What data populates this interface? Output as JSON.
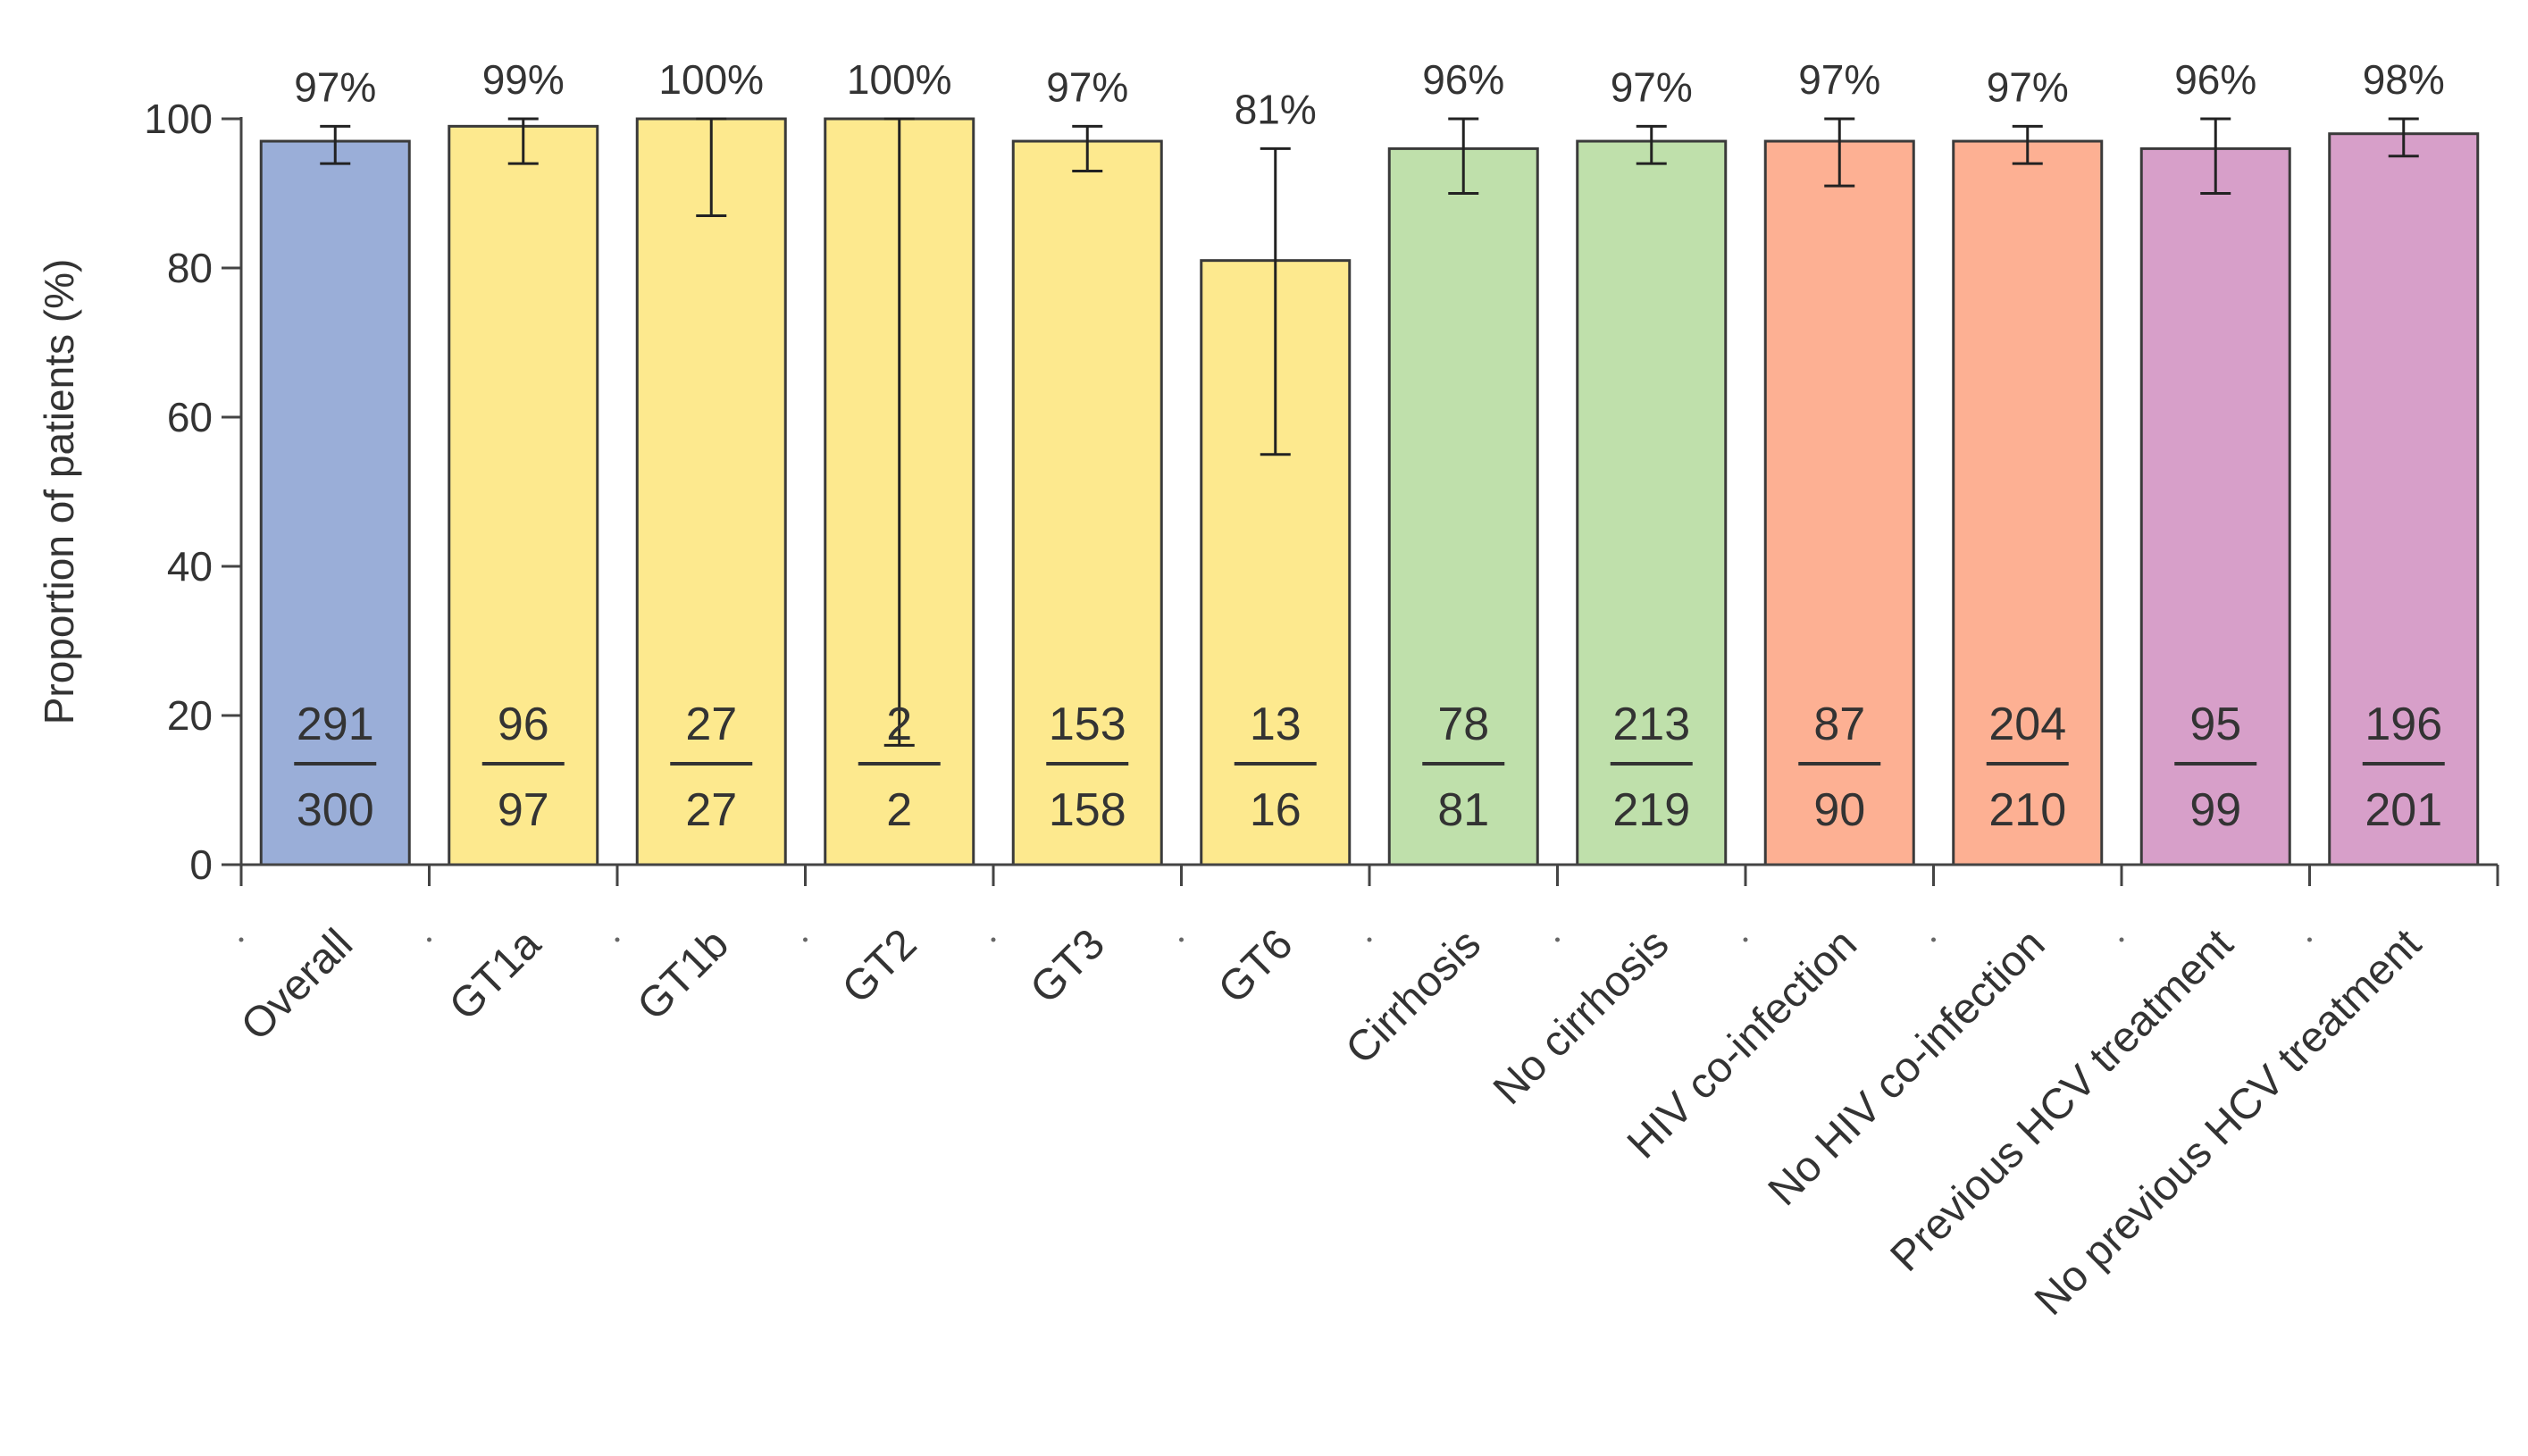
{
  "chart_data": {
    "type": "bar",
    "title": "",
    "xlabel": "",
    "ylabel": "Proportion of patients (%)",
    "ylim": [
      0,
      100
    ],
    "yticks": [
      0,
      20,
      40,
      60,
      80,
      100
    ],
    "grid": false,
    "legend": "none",
    "categories": [
      "Overall",
      "GT1a",
      "GT1b",
      "GT2",
      "GT3",
      "GT6",
      "Cirrhosis",
      "No cirrhosis",
      "HIV co-infection",
      "No HIV co-infection",
      "Previous HCV treatment",
      "No previous HCV treatment"
    ],
    "values": [
      97,
      99,
      100,
      100,
      97,
      81,
      96,
      97,
      97,
      97,
      96,
      98
    ],
    "value_labels": [
      "97%",
      "99%",
      "100%",
      "100%",
      "97%",
      "81%",
      "96%",
      "97%",
      "97%",
      "97%",
      "96%",
      "98%"
    ],
    "numerators": [
      "291",
      "96",
      "27",
      "2",
      "153",
      "13",
      "78",
      "213",
      "87",
      "204",
      "95",
      "196"
    ],
    "denominators": [
      "300",
      "97",
      "27",
      "2",
      "158",
      "16",
      "81",
      "219",
      "90",
      "210",
      "99",
      "201"
    ],
    "ci_lower": [
      94,
      94,
      87,
      16,
      93,
      55,
      90,
      94,
      91,
      94,
      90,
      95
    ],
    "ci_upper": [
      99,
      100,
      100,
      100,
      99,
      96,
      100,
      99,
      100,
      99,
      100,
      100
    ],
    "colors": [
      "#9aaed8",
      "#fde98e",
      "#fde98e",
      "#fde98e",
      "#fde98e",
      "#fde98e",
      "#bfe0ab",
      "#bfe0ab",
      "#fdb093",
      "#fdb093",
      "#d79fc9",
      "#d79fc9"
    ]
  }
}
